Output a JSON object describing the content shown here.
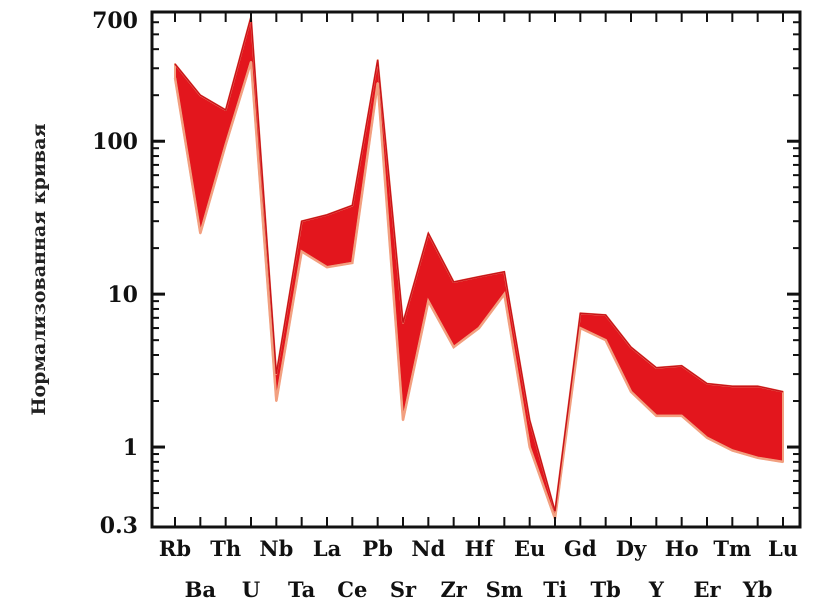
{
  "chart_data": {
    "type": "area",
    "title": "",
    "xlabel": "",
    "ylabel": "Нормализованная кривая",
    "y_scale": "log",
    "ylim": [
      0.3,
      700
    ],
    "ytick_labels": [
      "700",
      "100",
      "10",
      "1",
      "0.3"
    ],
    "ytick_values": [
      700,
      100,
      10,
      1,
      0.3
    ],
    "grid": false,
    "legend": "none",
    "fill_color": "#e3161d",
    "edge_color": "#f2a080",
    "categories": [
      "Rb",
      "Ba",
      "Th",
      "U",
      "Nb",
      "Ta",
      "La",
      "Ce",
      "Pb",
      "Sr",
      "Nd",
      "Zr",
      "Hf",
      "Sm",
      "Eu",
      "Ti",
      "Gd",
      "Tb",
      "Dy",
      "Y",
      "Ho",
      "Er",
      "Tm",
      "Yb",
      "Lu"
    ],
    "category_rows": [
      "top",
      "bottom",
      "top",
      "bottom",
      "top",
      "bottom",
      "top",
      "bottom",
      "top",
      "bottom",
      "top",
      "bottom",
      "top",
      "bottom",
      "top",
      "bottom",
      "top",
      "bottom",
      "top",
      "bottom",
      "top",
      "bottom",
      "top",
      "bottom",
      "top"
    ],
    "series": [
      {
        "values_upper": [
          320,
          200,
          160,
          650,
          3.0,
          30,
          33,
          38,
          340,
          6.5,
          25,
          12,
          13,
          14,
          1.5,
          0.38,
          7.5,
          7.3,
          4.5,
          3.3,
          3.4,
          2.6,
          2.5,
          2.5,
          2.3
        ],
        "values_lower": [
          260,
          25,
          95,
          330,
          2.0,
          19,
          15,
          16,
          240,
          1.5,
          9,
          4.5,
          6,
          10,
          1.0,
          0.34,
          6.0,
          5.0,
          2.3,
          1.6,
          1.6,
          1.15,
          0.95,
          0.85,
          0.8
        ]
      }
    ]
  }
}
